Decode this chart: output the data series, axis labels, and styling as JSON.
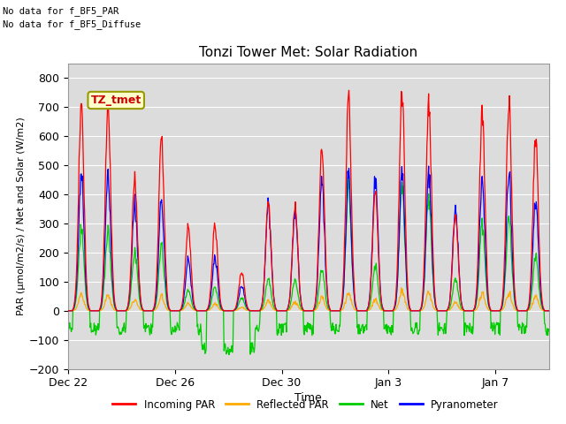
{
  "title": "Tonzi Tower Met: Solar Radiation",
  "xlabel": "Time",
  "ylabel": "PAR (μmol/m2/s) / Net and Solar (W/m2)",
  "ylim": [
    -200,
    850
  ],
  "yticks": [
    -200,
    -100,
    0,
    100,
    200,
    300,
    400,
    500,
    600,
    700,
    800
  ],
  "note_line1": "No data for f_BF5_PAR",
  "note_line2": "No data for f_BF5_Diffuse",
  "legend_label": "TZ_tmet",
  "legend_entries": [
    "Incoming PAR",
    "Reflected PAR",
    "Net",
    "Pyranometer"
  ],
  "legend_colors": [
    "#ff0000",
    "#ffaa00",
    "#00cc00",
    "#0000ff"
  ],
  "xtick_labels": [
    "Dec 22",
    "Dec 26",
    "Dec 30",
    "Jan 3",
    "Jan 7"
  ],
  "xtick_positions": [
    0,
    4,
    8,
    12,
    16
  ],
  "total_days": 18,
  "par_peaks": [
    730,
    730,
    470,
    610,
    300,
    305,
    140,
    380,
    375,
    590,
    760,
    420,
    775,
    745,
    340,
    710,
    750,
    620
  ],
  "pyr_peaks": [
    490,
    490,
    390,
    390,
    180,
    190,
    90,
    375,
    370,
    475,
    500,
    475,
    500,
    500,
    365,
    465,
    500,
    400
  ],
  "refl_peaks": [
    55,
    55,
    40,
    50,
    25,
    25,
    12,
    35,
    30,
    50,
    65,
    38,
    70,
    65,
    30,
    60,
    65,
    50
  ],
  "net_day_peaks": [
    310,
    310,
    230,
    240,
    80,
    90,
    50,
    120,
    120,
    160,
    480,
    170,
    480,
    450,
    120,
    340,
    360,
    210
  ],
  "net_night_base": -60,
  "net_night_deep_days": [
    5,
    6
  ],
  "net_night_deep": -130
}
